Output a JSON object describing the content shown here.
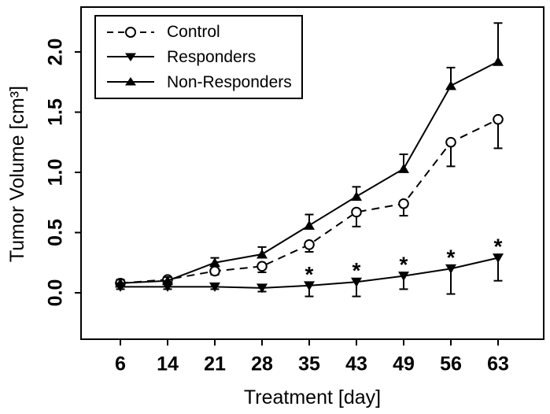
{
  "figure": {
    "background": "#ffffff",
    "frame_color": "#000000",
    "accent_color": "#000000"
  },
  "chart_data": {
    "type": "line",
    "title": "",
    "xlabel": "Treatment [day]",
    "ylabel": "Tumor Volume [cm³]",
    "categories": [
      "6",
      "14",
      "21",
      "28",
      "35",
      "43",
      "49",
      "56",
      "63"
    ],
    "yticks": [
      "0.0",
      "0.5",
      "1.0",
      "1.5",
      "2.0"
    ],
    "ylim": [
      -0.39,
      2.37
    ],
    "grid": false,
    "legend_position": "top-left",
    "significance_symbol": "*",
    "series": [
      {
        "name": "Control",
        "marker": "open-circle",
        "line": "dashed",
        "color": "#000000",
        "values": [
          0.08,
          0.11,
          0.18,
          0.22,
          0.4,
          0.67,
          0.74,
          1.25,
          1.44
        ],
        "errors": [
          0.03,
          0.03,
          0.03,
          0.05,
          0.06,
          0.12,
          0.1,
          0.2,
          0.24
        ],
        "error_dir": "down",
        "significance": [
          false,
          false,
          false,
          false,
          false,
          false,
          false,
          false,
          false
        ]
      },
      {
        "name": "Responders",
        "marker": "filled-triangle-down",
        "line": "solid",
        "color": "#000000",
        "values": [
          0.05,
          0.05,
          0.05,
          0.04,
          0.06,
          0.09,
          0.14,
          0.2,
          0.29
        ],
        "errors": [
          0.02,
          0.02,
          0.02,
          0.03,
          0.09,
          0.12,
          0.11,
          0.21,
          0.19
        ],
        "error_dir": "down",
        "significance": [
          false,
          false,
          false,
          false,
          true,
          true,
          true,
          true,
          true
        ]
      },
      {
        "name": "Non-Responders",
        "marker": "filled-triangle-up",
        "line": "solid",
        "color": "#000000",
        "values": [
          0.08,
          0.1,
          0.25,
          0.32,
          0.56,
          0.8,
          1.03,
          1.72,
          1.92
        ],
        "errors": [
          0.03,
          0.03,
          0.04,
          0.06,
          0.09,
          0.08,
          0.12,
          0.15,
          0.32
        ],
        "error_dir": "up",
        "significance": [
          false,
          false,
          false,
          false,
          false,
          false,
          false,
          false,
          false
        ]
      }
    ]
  }
}
